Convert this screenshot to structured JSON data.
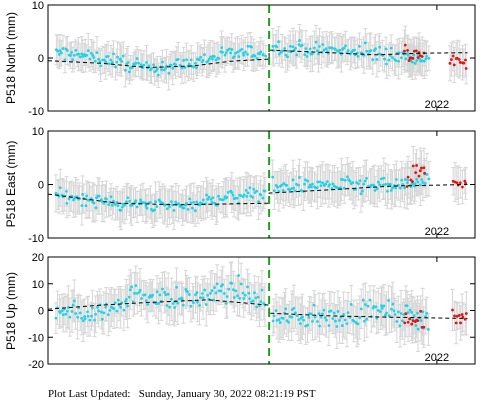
{
  "footer": {
    "label": "Plot Last Updated:",
    "datetime": "Sunday, January 30, 2022 08:21:19 PST"
  },
  "colors": {
    "points": "#22d3e8",
    "recent_points": "#e01515",
    "error_bars": "#d6d6d6",
    "trend": "#000000",
    "marker_line": "#1aa11a"
  },
  "chart_data": [
    {
      "type": "scatter",
      "ylabel": "P518 North (mm)",
      "ylim": [
        -10,
        10
      ],
      "yticks": [
        -10,
        0,
        10
      ],
      "xtick_labels": [
        "2022"
      ],
      "x_range": [
        2019.45,
        2022.25
      ],
      "equipment_change_x": 2020.9,
      "trend": [
        [
          2019.45,
          -0.5
        ],
        [
          2019.8,
          -1.0
        ],
        [
          2020.1,
          -1.8
        ],
        [
          2020.4,
          -1.5
        ],
        [
          2020.65,
          -0.6
        ],
        [
          2020.9,
          -0.2
        ],
        [
          2020.9,
          1.5
        ],
        [
          2021.3,
          1.0
        ],
        [
          2021.6,
          0.6
        ],
        [
          2021.9,
          0.9
        ],
        [
          2022.2,
          1.0
        ]
      ],
      "series": [
        {
          "segment": "pre",
          "x_start": 2019.5,
          "x_end": 2020.88,
          "count": 150,
          "anchors": [
            [
              2019.5,
              1.0
            ],
            [
              2019.8,
              0.0
            ],
            [
              2020.1,
              -2.0
            ],
            [
              2020.4,
              -1.0
            ],
            [
              2020.6,
              0.8
            ],
            [
              2020.88,
              1.0
            ]
          ],
          "spread": 1.2,
          "err": 2.6,
          "recent": false
        },
        {
          "segment": "post",
          "x_start": 2020.92,
          "x_end": 2021.95,
          "count": 110,
          "anchors": [
            [
              2020.92,
              2.0
            ],
            [
              2021.3,
              1.5
            ],
            [
              2021.6,
              0.8
            ],
            [
              2021.95,
              0.0
            ]
          ],
          "spread": 1.3,
          "err": 2.8,
          "recent": false
        },
        {
          "segment": "recent",
          "x_start": 2021.78,
          "x_end": 2021.92,
          "count": 14,
          "anchors": [
            [
              2021.78,
              1.0
            ],
            [
              2021.92,
              0.5
            ]
          ],
          "spread": 1.8,
          "err": 3.2,
          "recent": true
        },
        {
          "segment": "recent-end",
          "x_start": 2022.08,
          "x_end": 2022.2,
          "count": 12,
          "anchors": [
            [
              2022.08,
              -0.5
            ],
            [
              2022.2,
              -0.8
            ]
          ],
          "spread": 1.0,
          "err": 3.0,
          "recent": true
        }
      ]
    },
    {
      "type": "scatter",
      "ylabel": "P518 East (mm)",
      "ylim": [
        -10,
        10
      ],
      "yticks": [
        -10,
        0,
        10
      ],
      "xtick_labels": [
        "2022"
      ],
      "x_range": [
        2019.45,
        2022.25
      ],
      "equipment_change_x": 2020.9,
      "trend": [
        [
          2019.45,
          -1.8
        ],
        [
          2019.9,
          -3.5
        ],
        [
          2020.3,
          -3.8
        ],
        [
          2020.9,
          -3.5
        ],
        [
          2020.9,
          -1.6
        ],
        [
          2021.3,
          -1.0
        ],
        [
          2021.7,
          -0.3
        ],
        [
          2022.2,
          0.0
        ]
      ],
      "series": [
        {
          "segment": "pre",
          "x_start": 2019.5,
          "x_end": 2020.88,
          "count": 150,
          "anchors": [
            [
              2019.5,
              -2.0
            ],
            [
              2019.9,
              -3.5
            ],
            [
              2020.3,
              -4.0
            ],
            [
              2020.6,
              -2.5
            ],
            [
              2020.88,
              -1.5
            ]
          ],
          "spread": 1.1,
          "err": 3.0,
          "recent": false
        },
        {
          "segment": "post",
          "x_start": 2020.92,
          "x_end": 2021.95,
          "count": 110,
          "anchors": [
            [
              2020.92,
              -0.5
            ],
            [
              2021.3,
              0.0
            ],
            [
              2021.6,
              -0.5
            ],
            [
              2021.95,
              0.5
            ]
          ],
          "spread": 1.3,
          "err": 3.2,
          "recent": false
        },
        {
          "segment": "recent",
          "x_start": 2021.8,
          "x_end": 2021.93,
          "count": 12,
          "anchors": [
            [
              2021.8,
              1.0
            ],
            [
              2021.93,
              2.5
            ]
          ],
          "spread": 1.6,
          "err": 3.4,
          "recent": true
        },
        {
          "segment": "recent-end",
          "x_start": 2022.1,
          "x_end": 2022.2,
          "count": 8,
          "anchors": [
            [
              2022.1,
              0.0
            ],
            [
              2022.2,
              0.2
            ]
          ],
          "spread": 0.8,
          "err": 3.0,
          "recent": true
        }
      ]
    },
    {
      "type": "scatter",
      "ylabel": "P518 Up (mm)",
      "ylim": [
        -20,
        20
      ],
      "yticks": [
        -20,
        -10,
        0,
        10,
        20
      ],
      "xtick_labels": [
        "2022"
      ],
      "x_range": [
        2019.45,
        2022.25
      ],
      "equipment_change_x": 2020.9,
      "trend": [
        [
          2019.45,
          0.5
        ],
        [
          2019.8,
          2.0
        ],
        [
          2020.1,
          3.0
        ],
        [
          2020.5,
          4.0
        ],
        [
          2020.9,
          2.0
        ],
        [
          2020.9,
          -1.0
        ],
        [
          2021.3,
          -2.0
        ],
        [
          2021.7,
          -2.5
        ],
        [
          2022.2,
          -3.0
        ]
      ],
      "series": [
        {
          "segment": "pre",
          "x_start": 2019.5,
          "x_end": 2020.88,
          "count": 150,
          "anchors": [
            [
              2019.5,
              1.0
            ],
            [
              2019.75,
              -2.0
            ],
            [
              2020.0,
              6.0
            ],
            [
              2020.4,
              4.0
            ],
            [
              2020.7,
              8.0
            ],
            [
              2020.88,
              2.0
            ]
          ],
          "spread": 3.5,
          "err": 6.5,
          "recent": false
        },
        {
          "segment": "post",
          "x_start": 2020.92,
          "x_end": 2021.95,
          "count": 110,
          "anchors": [
            [
              2020.92,
              -2.0
            ],
            [
              2021.3,
              -3.0
            ],
            [
              2021.6,
              0.0
            ],
            [
              2021.95,
              -3.0
            ]
          ],
          "spread": 3.5,
          "err": 7.0,
          "recent": false
        },
        {
          "segment": "recent",
          "x_start": 2021.78,
          "x_end": 2021.92,
          "count": 12,
          "anchors": [
            [
              2021.78,
              -2.0
            ],
            [
              2021.92,
              -5.0
            ]
          ],
          "spread": 3.0,
          "err": 7.0,
          "recent": true
        },
        {
          "segment": "recent-end",
          "x_start": 2022.1,
          "x_end": 2022.2,
          "count": 10,
          "anchors": [
            [
              2022.1,
              -3.0
            ],
            [
              2022.2,
              -2.0
            ]
          ],
          "spread": 3.0,
          "err": 6.5,
          "recent": true
        }
      ]
    }
  ]
}
